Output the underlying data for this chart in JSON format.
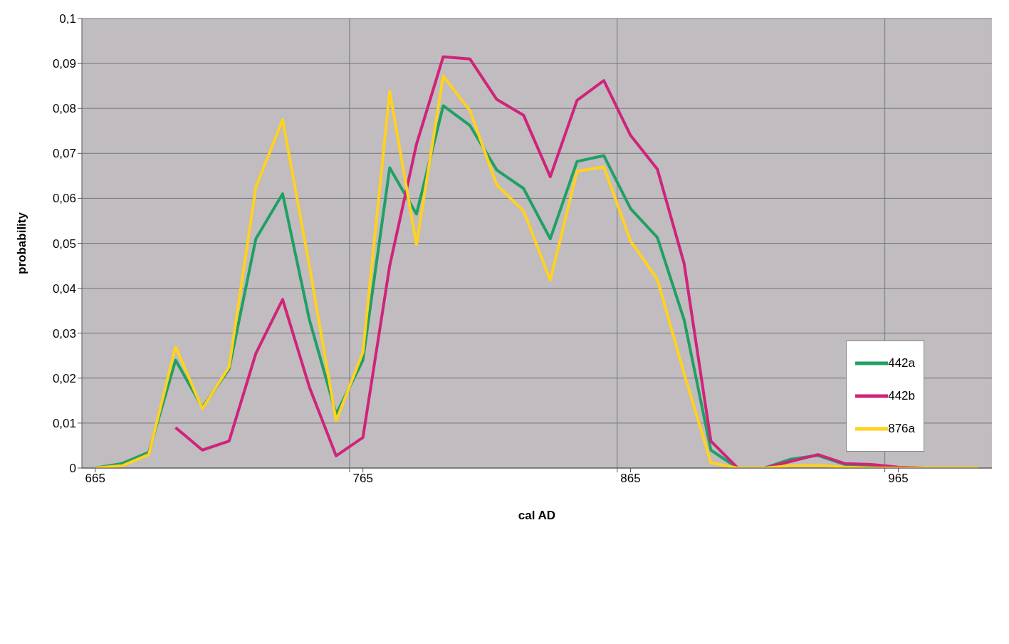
{
  "chart_data": {
    "type": "line",
    "xlabel": "cal AD",
    "ylabel": "probability",
    "x": [
      665,
      675,
      685,
      695,
      705,
      715,
      725,
      735,
      745,
      755,
      765,
      775,
      785,
      795,
      805,
      815,
      825,
      835,
      845,
      855,
      865,
      875,
      885,
      895,
      905,
      915,
      925,
      935,
      945,
      955,
      965,
      975,
      985,
      995
    ],
    "series": [
      {
        "name": "442a",
        "color": "#1fa064",
        "values": [
          0,
          0.001,
          0.0035,
          0.024,
          0.0135,
          0.022,
          0.051,
          0.061,
          0.033,
          0.012,
          0.024,
          0.0668,
          0.0565,
          0.0806,
          0.0762,
          0.0663,
          0.0622,
          0.051,
          0.0682,
          0.0695,
          0.0577,
          0.0513,
          0.033,
          0.004,
          0,
          0,
          0.002,
          0.0028,
          0.0008,
          0.0005,
          0,
          null,
          null,
          null
        ]
      },
      {
        "name": "442b",
        "color": "#d0237a",
        "values": [
          null,
          null,
          null,
          0.009,
          0.004,
          0.006,
          0.0255,
          0.0375,
          0.018,
          0.0027,
          0.0068,
          0.045,
          0.072,
          0.0915,
          0.091,
          0.082,
          0.0785,
          0.0648,
          0.0818,
          0.0862,
          0.074,
          0.0665,
          0.0455,
          0.006,
          0,
          0,
          0.0015,
          0.003,
          0.001,
          0.0008,
          0.0002,
          0,
          0,
          0
        ]
      },
      {
        "name": "876a",
        "color": "#ffd21f",
        "values": [
          0,
          0.0005,
          0.003,
          0.027,
          0.0132,
          0.0225,
          0.0625,
          0.0775,
          0.045,
          0.0105,
          0.0258,
          0.0838,
          0.0497,
          0.0872,
          0.0795,
          0.063,
          0.0572,
          0.0418,
          0.066,
          0.067,
          0.0505,
          0.042,
          0.021,
          0.0012,
          0,
          0,
          0.0005,
          0.0006,
          0.0002,
          0,
          0,
          0,
          0,
          0
        ]
      }
    ],
    "xlim": [
      660,
      1000
    ],
    "xticks": [
      665,
      {
        "value": 760,
        "label": null
      },
      765,
      {
        "value": 860,
        "label": null
      },
      865,
      {
        "value": 960,
        "label": null
      },
      965
    ],
    "ylim": [
      0,
      0.1
    ],
    "yticks": [
      0,
      {
        "value": 0.01,
        "label": "0,01"
      },
      {
        "value": 0.02,
        "label": "0,02"
      },
      {
        "value": 0.03,
        "label": "0,03"
      },
      {
        "value": 0.04,
        "label": "0,04"
      },
      {
        "value": 0.05,
        "label": "0,05"
      },
      {
        "value": 0.06,
        "label": "0,06"
      },
      {
        "value": 0.07,
        "label": "0,07"
      },
      {
        "value": 0.08,
        "label": "0,08"
      },
      {
        "value": 0.09,
        "label": "0,09"
      },
      {
        "value": 0.1,
        "label": "0,1"
      }
    ],
    "grid": true,
    "legend": "right",
    "marker": "none",
    "line_style": "solid"
  }
}
